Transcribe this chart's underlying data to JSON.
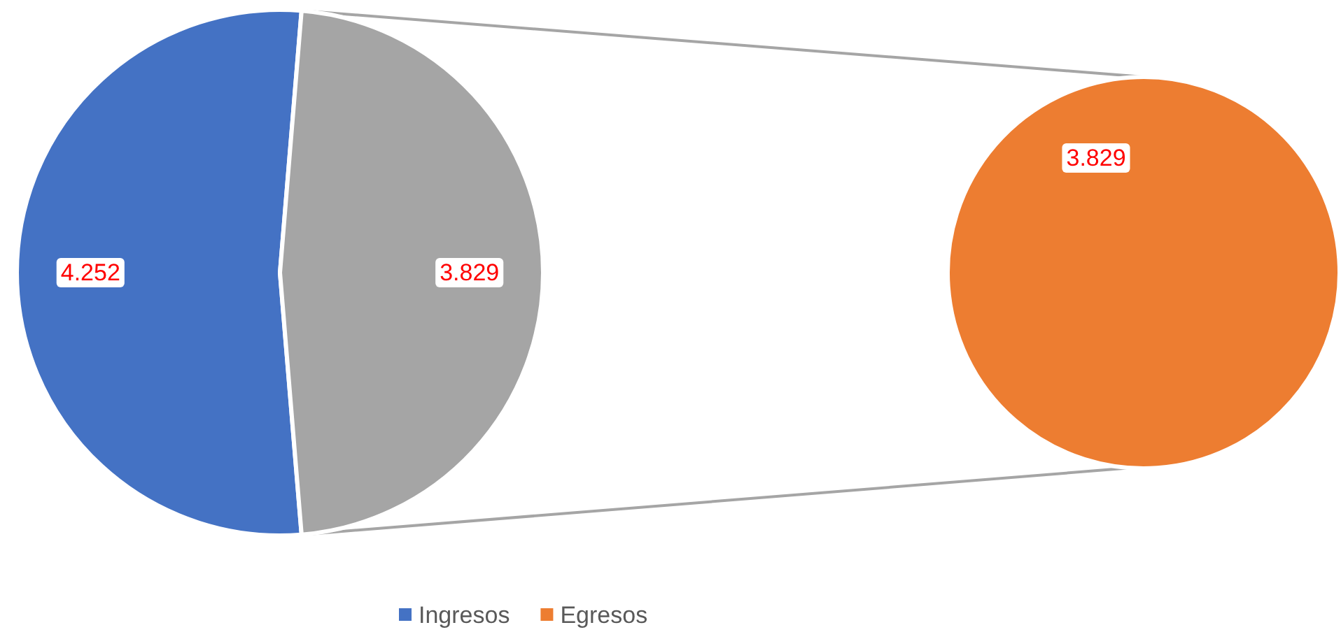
{
  "chart_data": [
    {
      "type": "pie",
      "categories": [
        "Ingresos",
        null
      ],
      "values": [
        4252,
        3829
      ],
      "colors": [
        "#4472c4",
        "#a5a5a5"
      ],
      "value_labels": [
        "4.252",
        "3.829"
      ],
      "legend": "bottom"
    },
    {
      "type": "pie",
      "categories": [
        "Egresos"
      ],
      "values": [
        3829
      ],
      "colors": [
        "#ed7d31"
      ],
      "value_labels": [
        "3.829"
      ],
      "legend": "bottom"
    }
  ]
}
